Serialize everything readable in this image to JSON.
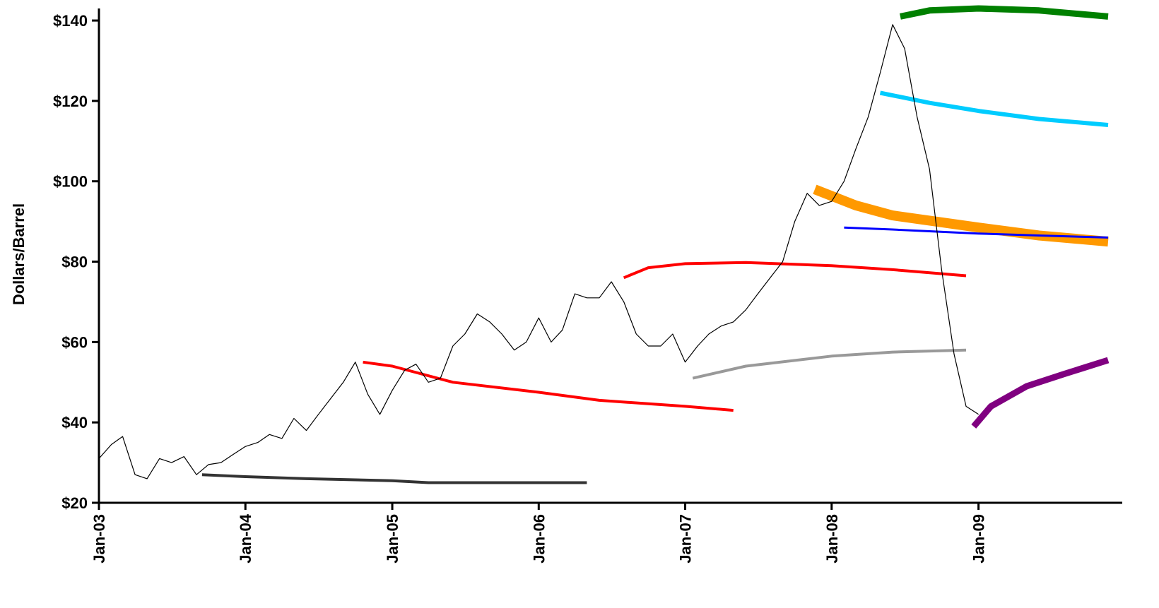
{
  "chart_data": {
    "type": "line",
    "title": "",
    "xlabel": "",
    "ylabel": "Dollars/Barrel",
    "xlim": [
      "2003-01-01",
      "2009-11-20"
    ],
    "ylim": [
      20,
      143
    ],
    "y_ticks": [
      {
        "value": 20,
        "label": "$20"
      },
      {
        "value": 40,
        "label": "$40"
      },
      {
        "value": 60,
        "label": "$60"
      },
      {
        "value": 80,
        "label": "$80"
      },
      {
        "value": 100,
        "label": "$100"
      },
      {
        "value": 120,
        "label": "$120"
      },
      {
        "value": 140,
        "label": "$140"
      }
    ],
    "x_ticks": [
      {
        "value": "2003-01-01",
        "label": "Jan-03"
      },
      {
        "value": "2004-01-01",
        "label": "Jan-04"
      },
      {
        "value": "2005-01-01",
        "label": "Jan-05"
      },
      {
        "value": "2006-01-01",
        "label": "Jan-06"
      },
      {
        "value": "2007-01-01",
        "label": "Jan-07"
      },
      {
        "value": "2008-01-01",
        "label": "Jan-08"
      },
      {
        "value": "2009-01-01",
        "label": "Jan-09"
      }
    ],
    "grid": false,
    "legend": "none",
    "spot_series": {
      "color": "#000000",
      "x": [
        "2003-01-01",
        "2003-02-01",
        "2003-03-01",
        "2003-04-01",
        "2003-05-01",
        "2003-06-01",
        "2003-07-01",
        "2003-08-01",
        "2003-09-01",
        "2003-10-01",
        "2003-11-01",
        "2003-12-01",
        "2004-01-01",
        "2004-02-01",
        "2004-03-01",
        "2004-04-01",
        "2004-05-01",
        "2004-06-01",
        "2004-07-01",
        "2004-08-01",
        "2004-09-01",
        "2004-10-01",
        "2004-11-01",
        "2004-12-01",
        "2005-01-01",
        "2005-02-01",
        "2005-03-01",
        "2005-04-01",
        "2005-05-01",
        "2005-06-01",
        "2005-07-01",
        "2005-08-01",
        "2005-09-01",
        "2005-10-01",
        "2005-11-01",
        "2005-12-01",
        "2006-01-01",
        "2006-02-01",
        "2006-03-01",
        "2006-04-01",
        "2006-05-01",
        "2006-06-01",
        "2006-07-01",
        "2006-08-01",
        "2006-09-01",
        "2006-10-01",
        "2006-11-01",
        "2006-12-01",
        "2007-01-01",
        "2007-02-01",
        "2007-03-01",
        "2007-04-01",
        "2007-05-01",
        "2007-06-01",
        "2007-07-01",
        "2007-08-01",
        "2007-09-01",
        "2007-10-01",
        "2007-11-01",
        "2007-12-01",
        "2008-01-01",
        "2008-02-01",
        "2008-03-01",
        "2008-04-01",
        "2008-05-01",
        "2008-06-01",
        "2008-07-01",
        "2008-08-01",
        "2008-09-01",
        "2008-10-01",
        "2008-11-01",
        "2008-12-01",
        "2009-01-01"
      ],
      "y": [
        31,
        34.5,
        36.5,
        27,
        26,
        31,
        30,
        31.5,
        27,
        29.5,
        30,
        32,
        34,
        35,
        37,
        36,
        41,
        38,
        42,
        46,
        50,
        55,
        47,
        42,
        48,
        53,
        54.5,
        50,
        51,
        59,
        62,
        67,
        65,
        62,
        58,
        60,
        66,
        60,
        63,
        72,
        71,
        71,
        75,
        70,
        62,
        59,
        59,
        62,
        55,
        59,
        62,
        64,
        65,
        68,
        72,
        76,
        80,
        90,
        97,
        94,
        95,
        100,
        108,
        116,
        127,
        139,
        133,
        116,
        103,
        78,
        57,
        44,
        42
      ]
    },
    "futures_curves": [
      {
        "color": "#333333",
        "width": 4,
        "x": [
          "2003-09-15",
          "2004-01-01",
          "2004-06-01",
          "2005-01-01",
          "2005-04-01",
          "2006-01-01",
          "2006-05-01"
        ],
        "y": [
          27,
          26.5,
          26,
          25.5,
          25,
          25,
          25
        ]
      },
      {
        "color": "#ff0000",
        "width": 4,
        "x": [
          "2004-10-20",
          "2005-01-01",
          "2005-06-01",
          "2006-01-01",
          "2006-06-01",
          "2007-01-01",
          "2007-05-01"
        ],
        "y": [
          55,
          54,
          50,
          47.5,
          45.5,
          44,
          43
        ]
      },
      {
        "color": "#ff0000",
        "width": 4,
        "x": [
          "2006-08-01",
          "2006-10-01",
          "2007-01-01",
          "2007-06-01",
          "2008-01-01",
          "2008-06-01",
          "2008-12-01"
        ],
        "y": [
          76,
          78.5,
          79.5,
          79.8,
          79,
          78,
          76.5
        ]
      },
      {
        "color": "#999999",
        "width": 4,
        "x": [
          "2007-01-20",
          "2007-06-01",
          "2008-01-01",
          "2008-06-01",
          "2008-12-01"
        ],
        "y": [
          51,
          54,
          56.5,
          57.5,
          58
        ]
      },
      {
        "color": "#ff9900",
        "width": 14,
        "x": [
          "2007-11-20",
          "2008-03-01",
          "2008-06-01",
          "2009-01-01",
          "2009-06-01",
          "2009-11-20"
        ],
        "y": [
          98,
          94,
          91.5,
          88.5,
          86.5,
          85
        ]
      },
      {
        "color": "#0000ff",
        "width": 3,
        "x": [
          "2008-02-01",
          "2008-06-01",
          "2009-01-01",
          "2009-06-01",
          "2009-11-20"
        ],
        "y": [
          88.5,
          88,
          87,
          86.5,
          86
        ]
      },
      {
        "color": "#00ccff",
        "width": 6,
        "x": [
          "2008-05-01",
          "2008-09-01",
          "2009-01-01",
          "2009-06-01",
          "2009-11-20"
        ],
        "y": [
          122,
          119.5,
          117.5,
          115.5,
          114
        ]
      },
      {
        "color": "#008000",
        "width": 9,
        "x": [
          "2008-06-20",
          "2008-09-01",
          "2009-01-01",
          "2009-06-01",
          "2009-11-20"
        ],
        "y": [
          141,
          142.5,
          143,
          142.5,
          141
        ]
      },
      {
        "color": "#800080",
        "width": 9,
        "x": [
          "2008-12-20",
          "2009-02-01",
          "2009-05-01",
          "2009-08-01",
          "2009-11-20"
        ],
        "y": [
          39,
          44,
          49,
          52,
          55.5
        ]
      }
    ]
  }
}
